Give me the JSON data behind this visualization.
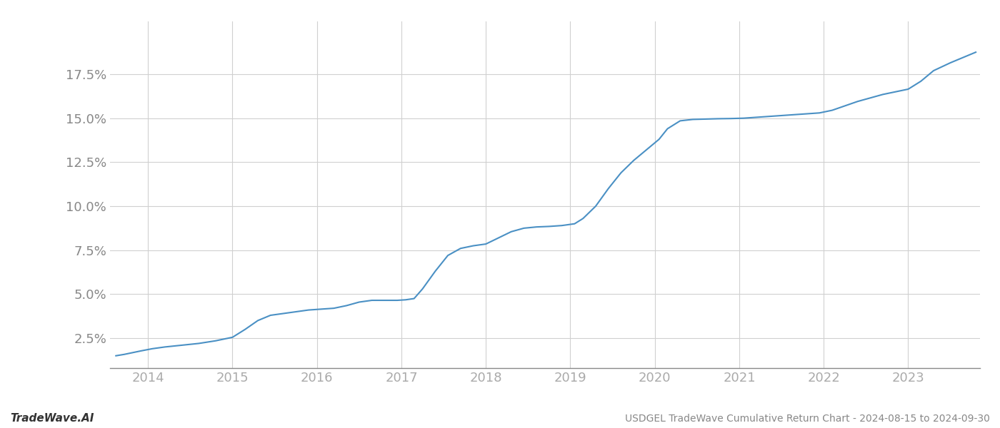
{
  "title": "USDGEL TradeWave Cumulative Return Chart - 2024-08-15 to 2024-09-30",
  "watermark": "TradeWave.AI",
  "line_color": "#4a90c4",
  "background_color": "#ffffff",
  "grid_color": "#d0d0d0",
  "x_years": [
    2014,
    2015,
    2016,
    2017,
    2018,
    2019,
    2020,
    2021,
    2022,
    2023
  ],
  "x_data": [
    2013.62,
    2013.72,
    2013.82,
    2013.92,
    2014.05,
    2014.2,
    2014.4,
    2014.6,
    2014.8,
    2015.0,
    2015.15,
    2015.3,
    2015.45,
    2015.6,
    2015.75,
    2015.9,
    2016.05,
    2016.2,
    2016.35,
    2016.5,
    2016.65,
    2016.8,
    2016.95,
    2017.05,
    2017.15,
    2017.25,
    2017.4,
    2017.55,
    2017.7,
    2017.85,
    2018.0,
    2018.15,
    2018.3,
    2018.45,
    2018.6,
    2018.75,
    2018.9,
    2019.05,
    2019.15,
    2019.3,
    2019.45,
    2019.6,
    2019.75,
    2019.9,
    2020.05,
    2020.15,
    2020.3,
    2020.45,
    2020.6,
    2020.75,
    2020.9,
    2021.05,
    2021.2,
    2021.35,
    2021.5,
    2021.65,
    2021.8,
    2021.95,
    2022.1,
    2022.25,
    2022.4,
    2022.55,
    2022.7,
    2022.85,
    2023.0,
    2023.15,
    2023.3,
    2023.5,
    2023.65,
    2023.8
  ],
  "y_data": [
    1.5,
    1.58,
    1.68,
    1.78,
    1.9,
    2.0,
    2.1,
    2.2,
    2.35,
    2.55,
    3.0,
    3.5,
    3.8,
    3.9,
    4.0,
    4.1,
    4.15,
    4.2,
    4.35,
    4.55,
    4.65,
    4.65,
    4.65,
    4.68,
    4.75,
    5.3,
    6.3,
    7.2,
    7.6,
    7.75,
    7.85,
    8.2,
    8.55,
    8.75,
    8.82,
    8.85,
    8.9,
    9.0,
    9.3,
    10.0,
    11.0,
    11.9,
    12.6,
    13.2,
    13.8,
    14.4,
    14.85,
    14.93,
    14.95,
    14.97,
    14.98,
    15.0,
    15.05,
    15.1,
    15.15,
    15.2,
    15.25,
    15.3,
    15.45,
    15.7,
    15.95,
    16.15,
    16.35,
    16.5,
    16.65,
    17.1,
    17.7,
    18.15,
    18.45,
    18.75
  ],
  "yticks": [
    2.5,
    5.0,
    7.5,
    10.0,
    12.5,
    15.0,
    17.5
  ],
  "ylim": [
    0.8,
    20.5
  ],
  "xlim": [
    2013.55,
    2023.85
  ],
  "title_fontsize": 10,
  "watermark_fontsize": 11,
  "tick_fontsize": 13,
  "ytick_color": "#888888",
  "xtick_color": "#aaaaaa",
  "spine_color": "#888888",
  "footer_color": "#888888"
}
